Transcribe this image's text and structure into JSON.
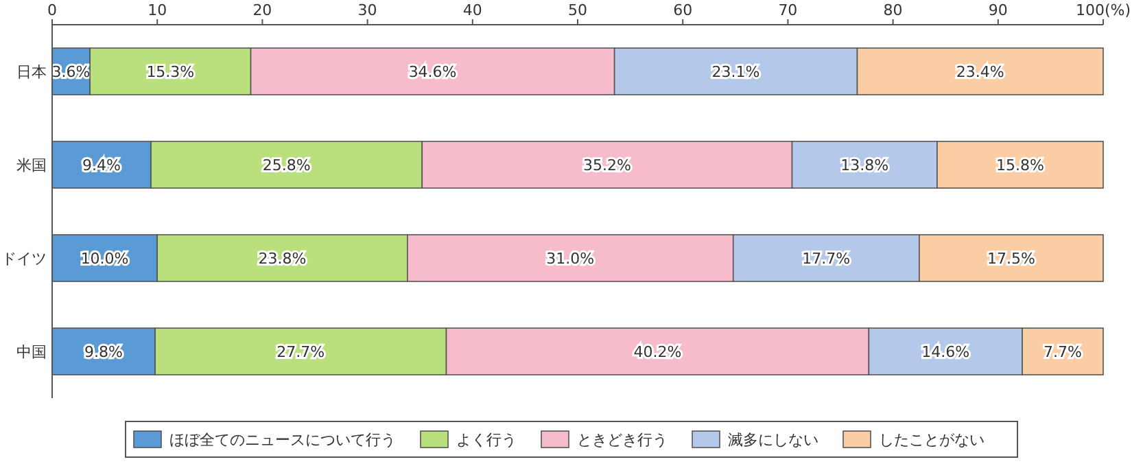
{
  "chart_data": {
    "type": "bar",
    "orientation": "horizontal",
    "stacked": true,
    "categories": [
      "日本",
      "米国",
      "ドイツ",
      "中国"
    ],
    "series": [
      {
        "name": "ほぼ全てのニュースについて行う",
        "color": "#5b9bd5",
        "values": [
          3.6,
          9.4,
          10.0,
          9.8
        ],
        "value_labels": [
          "3.6%",
          "9.4%",
          "10.0%",
          "9.8%"
        ]
      },
      {
        "name": "よく行う",
        "color": "#b9e07c",
        "values": [
          15.3,
          25.8,
          23.8,
          27.7
        ],
        "value_labels": [
          "15.3%",
          "25.8%",
          "23.8%",
          "27.7%"
        ]
      },
      {
        "name": "ときどき行う",
        "color": "#f7bccb",
        "values": [
          34.6,
          35.2,
          31.0,
          40.2
        ],
        "value_labels": [
          "34.6%",
          "35.2%",
          "31.0%",
          "40.2%"
        ]
      },
      {
        "name": "滅多にしない",
        "color": "#b4c8ea",
        "values": [
          23.1,
          13.8,
          17.7,
          14.6
        ],
        "value_labels": [
          "23.1%",
          "13.8%",
          "17.7%",
          "14.6%"
        ]
      },
      {
        "name": "したことがない",
        "color": "#fbcda5",
        "values": [
          23.4,
          15.8,
          17.5,
          7.7
        ],
        "value_labels": [
          "23.4%",
          "15.8%",
          "17.5%",
          "7.7%"
        ]
      }
    ],
    "xlim": [
      0,
      100
    ],
    "xticks": [
      0,
      10,
      20,
      30,
      40,
      50,
      60,
      70,
      80,
      90,
      {
        "value": 100,
        "label": "100(%)"
      }
    ],
    "legend": "bottom",
    "grid": false
  }
}
